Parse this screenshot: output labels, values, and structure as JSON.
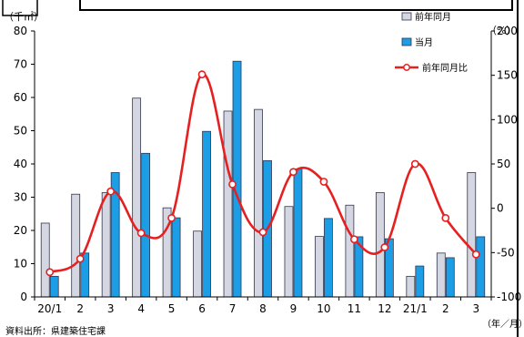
{
  "chart_data": {
    "type": "bar",
    "categories": [
      "20/1",
      "2",
      "3",
      "4",
      "5",
      "6",
      "7",
      "8",
      "9",
      "10",
      "11",
      "12",
      "21/1",
      "2",
      "3"
    ],
    "series": [
      {
        "name": "前年同月",
        "type": "bar",
        "axis": "left",
        "color": "#d4d6e2",
        "values": [
          22.2,
          30.9,
          31.4,
          59.8,
          26.8,
          19.8,
          55.9,
          56.4,
          27.2,
          18.2,
          27.6,
          31.4,
          6.2,
          13.2,
          37.4
        ]
      },
      {
        "name": "当月",
        "type": "bar",
        "axis": "left",
        "color": "#1b9ee6",
        "values": [
          6.2,
          13.2,
          37.4,
          43.2,
          23.8,
          49.8,
          70.9,
          41.0,
          38.5,
          23.6,
          18.1,
          17.5,
          9.3,
          11.8,
          18.1
        ]
      },
      {
        "name": "前年同月比",
        "type": "line",
        "axis": "right",
        "color": "#e62020",
        "values": [
          -72,
          -57,
          19,
          -28,
          -11,
          151,
          27,
          -27,
          41,
          30,
          -35,
          -44,
          50,
          -11,
          -52
        ]
      }
    ],
    "ylabel_left": "（千㎡）",
    "ylabel_right": "（%）",
    "xlabel": "（年／月）",
    "ylim_left": [
      0,
      80
    ],
    "yticks_left": [
      0,
      10,
      20,
      30,
      40,
      50,
      60,
      70,
      80
    ],
    "ylim_right": [
      -100,
      200
    ],
    "yticks_right": [
      -100,
      -50,
      0,
      50,
      100,
      150,
      200
    ],
    "legend_position": "top-right",
    "source": "資料出所：県建築住宅課",
    "grid": false
  }
}
